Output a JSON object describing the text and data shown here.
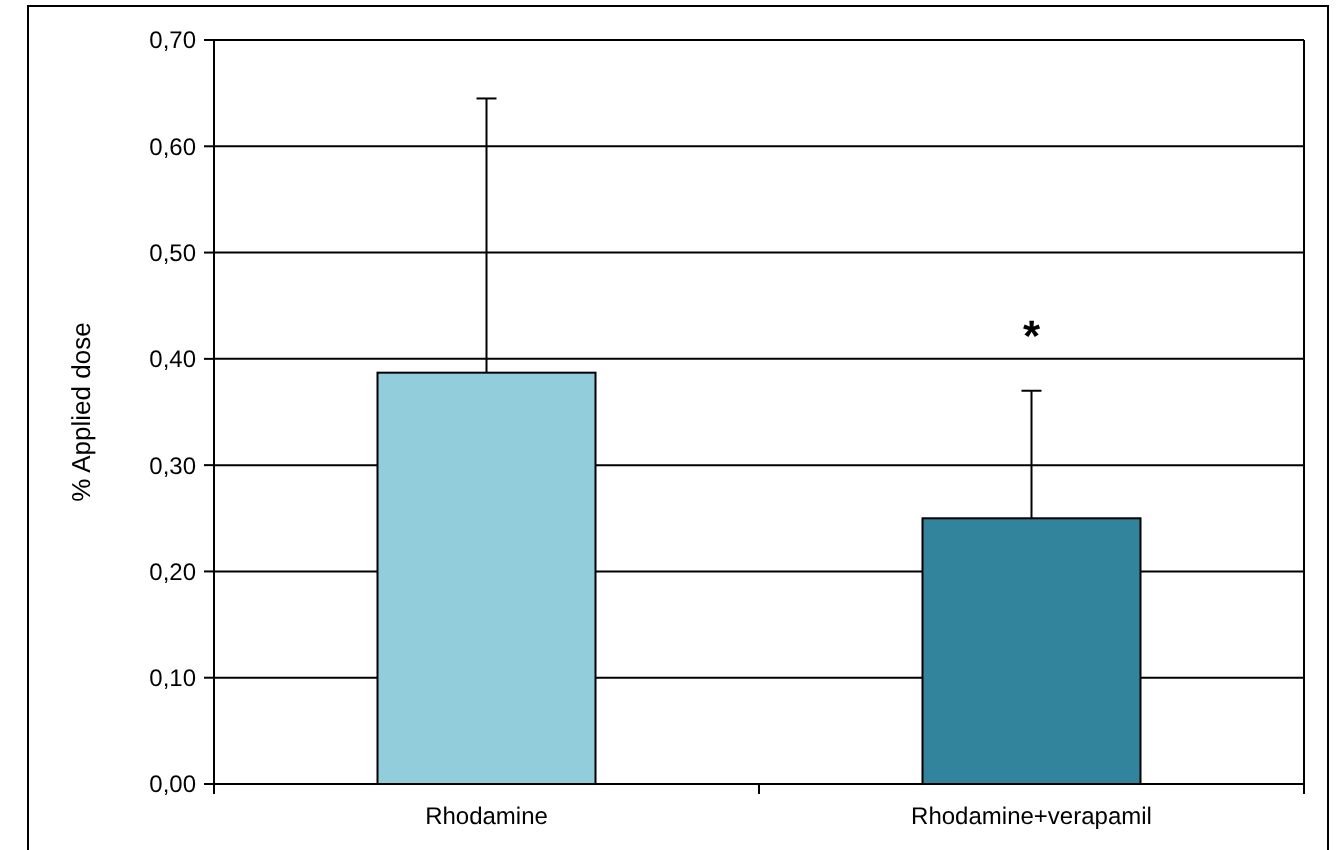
{
  "chart_data": {
    "type": "bar",
    "ylabel": "% Applied dose",
    "categories": [
      "Rhodamine",
      "Rhodamine+verapamil"
    ],
    "values": [
      0.387,
      0.25
    ],
    "colors": [
      "#92cddc",
      "#31849b"
    ],
    "errors": [
      [
        0.387,
        0.645
      ],
      [
        0.25,
        0.37
      ]
    ],
    "ylim": [
      0,
      0.7
    ],
    "yticks": [
      {
        "value": 0,
        "label": "0,00"
      },
      {
        "value": 0.1,
        "label": "0,10"
      },
      {
        "value": 0.2,
        "label": "0,20"
      },
      {
        "value": 0.3,
        "label": "0,30"
      },
      {
        "value": 0.4,
        "label": "0,40"
      },
      {
        "value": 0.5,
        "label": "0,50"
      },
      {
        "value": 0.6,
        "label": "0,60"
      },
      {
        "value": 0.7,
        "label": "0,70"
      }
    ],
    "grid": "y",
    "annotations": [
      "*"
    ]
  }
}
